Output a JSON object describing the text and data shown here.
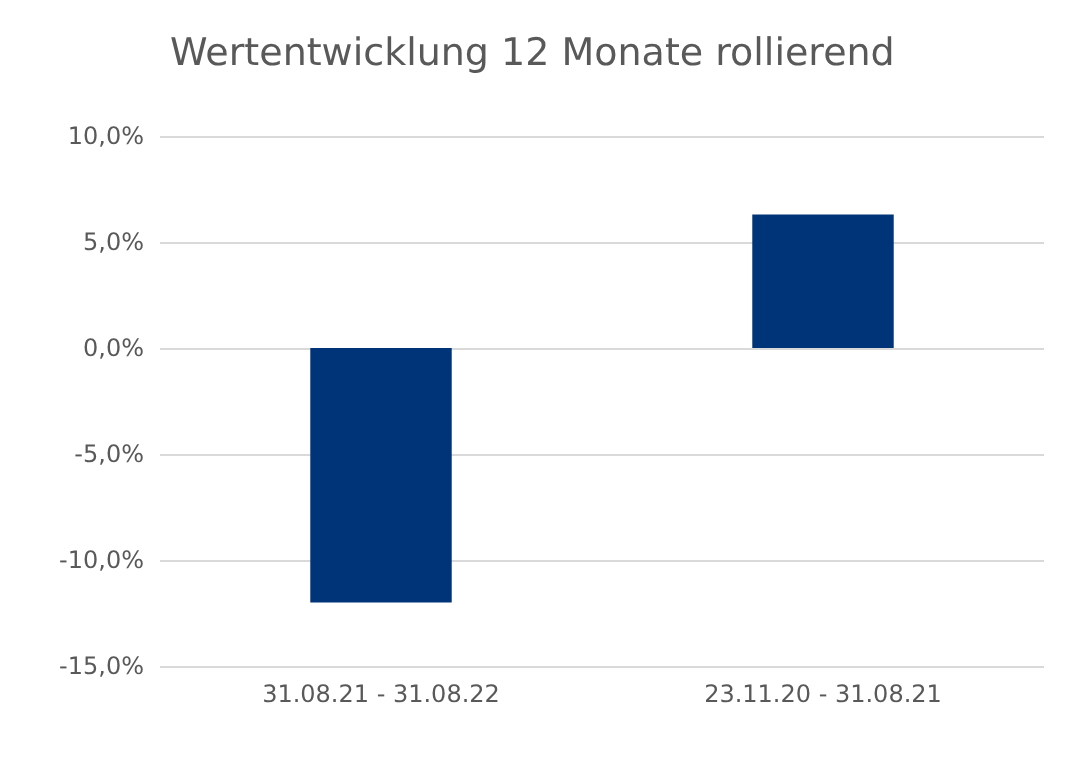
{
  "chart_data": {
    "type": "bar",
    "title": "Wertentwicklung 12 Monate rollierend",
    "categories": [
      "31.08.21 - 31.08.22",
      "23.11.20 - 31.08.21"
    ],
    "values": [
      -12.0,
      6.3
    ],
    "color": "#003478",
    "ylim": [
      -15,
      10
    ],
    "yticks": [
      {
        "value": -15,
        "label": "-15,0%"
      },
      {
        "value": -10,
        "label": "-10,0%"
      },
      {
        "value": -5,
        "label": "-5,0%"
      },
      {
        "value": 0,
        "label": "0,0%"
      },
      {
        "value": 5,
        "label": "5,0%"
      },
      {
        "value": 10,
        "label": "10,0%"
      }
    ],
    "grid": "y"
  }
}
